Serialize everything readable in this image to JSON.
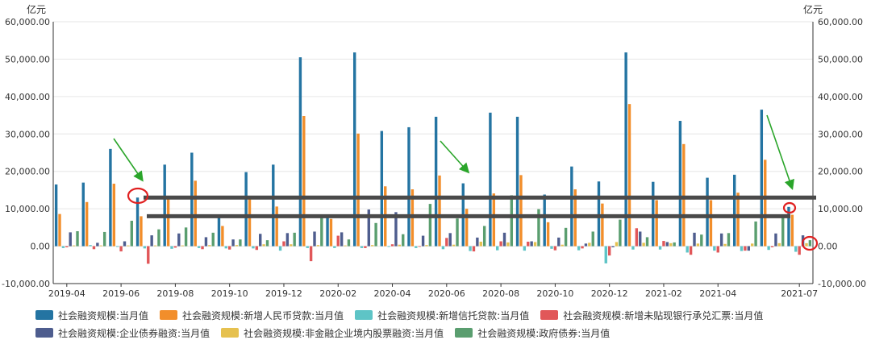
{
  "chart_data": {
    "type": "bar",
    "y_unit_left": "亿元",
    "y_unit_right": "亿元",
    "ylim": [
      -10000,
      60000
    ],
    "yticks": [
      -10000,
      0,
      10000,
      20000,
      30000,
      40000,
      50000,
      60000
    ],
    "ytick_labels": [
      "-10,000.00",
      "0.00",
      "10,000.00",
      "20,000.00",
      "30,000.00",
      "40,000.00",
      "50,000.00",
      "60,000.00"
    ],
    "grid": true,
    "legend_position": "bottom",
    "categories": [
      "2019-04",
      "2019-05",
      "2019-06",
      "2019-07",
      "2019-08",
      "2019-09",
      "2019-10",
      "2019-11",
      "2019-12",
      "2020-01",
      "2020-02",
      "2020-03",
      "2020-04",
      "2020-05",
      "2020-06",
      "2020-07",
      "2020-08",
      "2020-09",
      "2020-10",
      "2020-11",
      "2020-12",
      "2021-01",
      "2021-02",
      "2021-03",
      "2021-04",
      "2021-05",
      "2021-06",
      "2021-07"
    ],
    "xtick_labels": [
      "2019-04",
      "2019-06",
      "2019-08",
      "2019-10",
      "2019-12",
      "2020-02",
      "2020-04",
      "2020-06",
      "2020-08",
      "2020-10",
      "2020-12",
      "2021-02",
      "2021-04",
      "2021-07"
    ],
    "series": [
      {
        "name": "社会融资规模:当月值",
        "color": "#2474a2",
        "values": [
          16500,
          17000,
          26000,
          13000,
          21800,
          25000,
          8500,
          19800,
          21800,
          50500,
          8500,
          51800,
          30800,
          31800,
          34600,
          16800,
          35700,
          34600,
          13800,
          21300,
          17300,
          51800,
          17200,
          33500,
          18300,
          19100,
          36500,
          10500
        ]
      },
      {
        "name": "社会融资规模:新增人民币贷款:当月值",
        "color": "#f28e2b",
        "values": [
          8600,
          11800,
          16700,
          8000,
          12600,
          17500,
          5400,
          13400,
          10600,
          34800,
          7300,
          30100,
          16000,
          15200,
          18900,
          10000,
          14100,
          19000,
          6400,
          15200,
          11400,
          38000,
          12300,
          27300,
          12300,
          14300,
          23100,
          8400
        ]
      },
      {
        "name": "社会融资规模:新增信托贷款:当月值",
        "color": "#5ec4c6",
        "values": [
          -500,
          300,
          -200,
          -600,
          -700,
          -500,
          -600,
          -600,
          -1200,
          -500,
          -500,
          -500,
          -200,
          -500,
          -800,
          -1300,
          -1100,
          -1200,
          -700,
          -1100,
          -4600,
          -900,
          -900,
          -1700,
          -1200,
          -1300,
          -1000,
          -1500
        ]
      },
      {
        "name": "社会融资规模:新增未贴现银行承兑汇票:当月值",
        "color": "#e15759",
        "values": [
          -300,
          -800,
          -1400,
          -4700,
          -400,
          -800,
          -900,
          -1000,
          1300,
          -4000,
          2800,
          -500,
          500,
          -100,
          2200,
          -1400,
          1300,
          1200,
          -1100,
          -600,
          -2500,
          4800,
          1400,
          -2300,
          -1700,
          -1200,
          -300,
          -2300
        ]
      },
      {
        "name": "社会融资规模:企业债券融资:当月值",
        "color": "#4e5d8e",
        "values": [
          3700,
          900,
          1300,
          2900,
          3400,
          2400,
          1800,
          3300,
          3500,
          3900,
          3700,
          9800,
          9100,
          2800,
          3500,
          2300,
          3600,
          1300,
          2300,
          700,
          -300,
          3900,
          1100,
          3600,
          3400,
          -1200,
          3400,
          2900
        ]
      },
      {
        "name": "社会融资规模:非金融企业境内股票融资:当月值",
        "color": "#e6c14f",
        "values": [
          200,
          200,
          200,
          200,
          200,
          300,
          300,
          500,
          500,
          300,
          200,
          300,
          400,
          300,
          400,
          1200,
          1000,
          1100,
          400,
          900,
          1100,
          900,
          800,
          700,
          600,
          700,
          800,
          800
        ]
      },
      {
        "name": "社会融资规模:政府债券:当月值",
        "color": "#5a9e6f",
        "values": [
          4000,
          3800,
          6800,
          4500,
          5000,
          3600,
          1800,
          1600,
          3600,
          7800,
          1800,
          6200,
          3200,
          11300,
          7400,
          5400,
          13600,
          9900,
          4900,
          3900,
          7100,
          2400,
          1000,
          3100,
          3500,
          6600,
          7600,
          1600
        ]
      }
    ]
  },
  "annotations": {
    "callout_level": 13000,
    "lower_line_level": 8000
  }
}
